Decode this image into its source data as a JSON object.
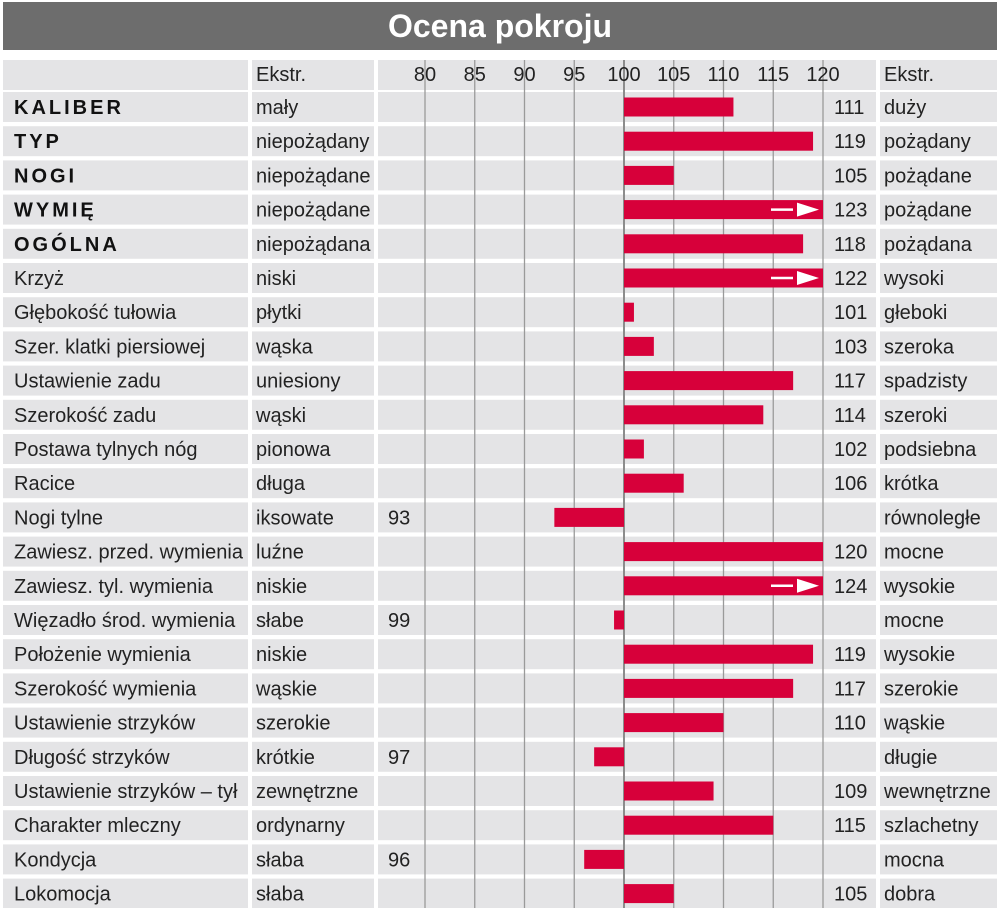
{
  "chart_data": {
    "type": "bar",
    "title": "Ocena pokroju",
    "column_header_left": "Ekstr.",
    "column_header_right": "Ekstr.",
    "x_ticks": [
      80,
      85,
      90,
      95,
      100,
      105,
      110,
      115,
      120
    ],
    "xlim": [
      80,
      120
    ],
    "baseline": 100,
    "bar_color": "#d7003a",
    "title_bg": "#6d6d6d",
    "row_shading": "#e4e4e6",
    "gridline_color": "#9a9a9a",
    "rows": [
      {
        "trait": "KALIBER",
        "bold": true,
        "left": "mały",
        "value": 111,
        "right": "duży",
        "arrow": false
      },
      {
        "trait": "TYP",
        "bold": true,
        "left": "niepożądany",
        "value": 119,
        "right": "pożądany",
        "arrow": false
      },
      {
        "trait": "NOGI",
        "bold": true,
        "left": "niepożądane",
        "value": 105,
        "right": "pożądane",
        "arrow": false
      },
      {
        "trait": "WYMIĘ",
        "bold": true,
        "left": "niepożądane",
        "value": 123,
        "right": "pożądane",
        "arrow": true
      },
      {
        "trait": "OGÓLNA",
        "bold": true,
        "left": "niepożądana",
        "value": 118,
        "right": "pożądana",
        "arrow": false
      },
      {
        "trait": "Krzyż",
        "bold": false,
        "left": "niski",
        "value": 122,
        "right": "wysoki",
        "arrow": true
      },
      {
        "trait": "Głębokość tułowia",
        "bold": false,
        "left": "płytki",
        "value": 101,
        "right": "głeboki",
        "arrow": false
      },
      {
        "trait": "Szer. klatki piersiowej",
        "bold": false,
        "left": "wąska",
        "value": 103,
        "right": "szeroka",
        "arrow": false
      },
      {
        "trait": "Ustawienie zadu",
        "bold": false,
        "left": "uniesiony",
        "value": 117,
        "right": "spadzisty",
        "arrow": false
      },
      {
        "trait": "Szerokość zadu",
        "bold": false,
        "left": "wąski",
        "value": 114,
        "right": "szeroki",
        "arrow": false
      },
      {
        "trait": "Postawa tylnych nóg",
        "bold": false,
        "left": "pionowa",
        "value": 102,
        "right": "podsiebna",
        "arrow": false
      },
      {
        "trait": "Racice",
        "bold": false,
        "left": "długa",
        "value": 106,
        "right": "krótka",
        "arrow": false
      },
      {
        "trait": "Nogi tylne",
        "bold": false,
        "left": "iksowate",
        "value": 93,
        "right": "równoległe",
        "arrow": false
      },
      {
        "trait": "Zawiesz. przed. wymienia",
        "bold": false,
        "left": "luźne",
        "value": 120,
        "right": "mocne",
        "arrow": false
      },
      {
        "trait": "Zawiesz. tyl. wymienia",
        "bold": false,
        "left": "niskie",
        "value": 124,
        "right": "wysokie",
        "arrow": true
      },
      {
        "trait": "Więzadło środ. wymienia",
        "bold": false,
        "left": "słabe",
        "value": 99,
        "right": "mocne",
        "arrow": false
      },
      {
        "trait": "Położenie wymienia",
        "bold": false,
        "left": "niskie",
        "value": 119,
        "right": "wysokie",
        "arrow": false
      },
      {
        "trait": "Szerokość wymienia",
        "bold": false,
        "left": "wąskie",
        "value": 117,
        "right": "szerokie",
        "arrow": false
      },
      {
        "trait": "Ustawienie strzyków",
        "bold": false,
        "left": "szerokie",
        "value": 110,
        "right": "wąskie",
        "arrow": false
      },
      {
        "trait": "Długość strzyków",
        "bold": false,
        "left": "krótkie",
        "value": 97,
        "right": "długie",
        "arrow": false
      },
      {
        "trait": "Ustawienie strzyków – tył",
        "bold": false,
        "left": "zewnętrzne",
        "value": 109,
        "right": "wewnętrzne",
        "arrow": false
      },
      {
        "trait": "Charakter mleczny",
        "bold": false,
        "left": "ordynarny",
        "value": 115,
        "right": "szlachetny",
        "arrow": false
      },
      {
        "trait": "Kondycja",
        "bold": false,
        "left": "słaba",
        "value": 96,
        "right": "mocna",
        "arrow": false
      },
      {
        "trait": "Lokomocja",
        "bold": false,
        "left": "słaba",
        "value": 105,
        "right": "dobra",
        "arrow": false
      }
    ]
  }
}
